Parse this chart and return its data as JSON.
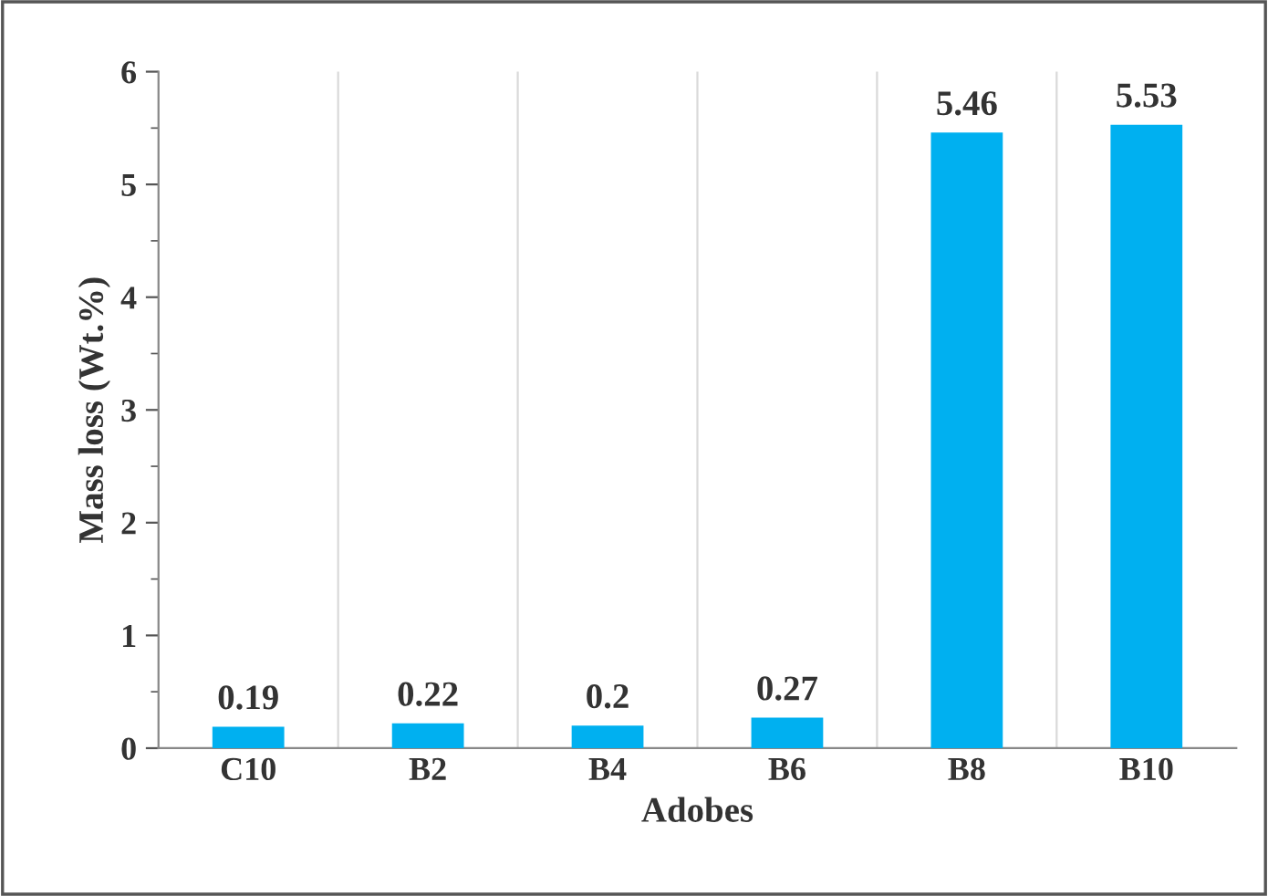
{
  "chart_data": {
    "type": "bar",
    "xlabel": "Adobes",
    "ylabel": "Mass loss (Wt.%)",
    "categories": [
      "C10",
      "B2",
      "B4",
      "B6",
      "B8",
      "B10"
    ],
    "values": [
      0.19,
      0.22,
      0.2,
      0.27,
      5.46,
      5.53
    ],
    "color": "#00b0f0",
    "ylim": [
      0,
      6
    ],
    "yticks": [
      0,
      1,
      2,
      3,
      4,
      5,
      6
    ],
    "grid": "x",
    "data_labels": true
  }
}
